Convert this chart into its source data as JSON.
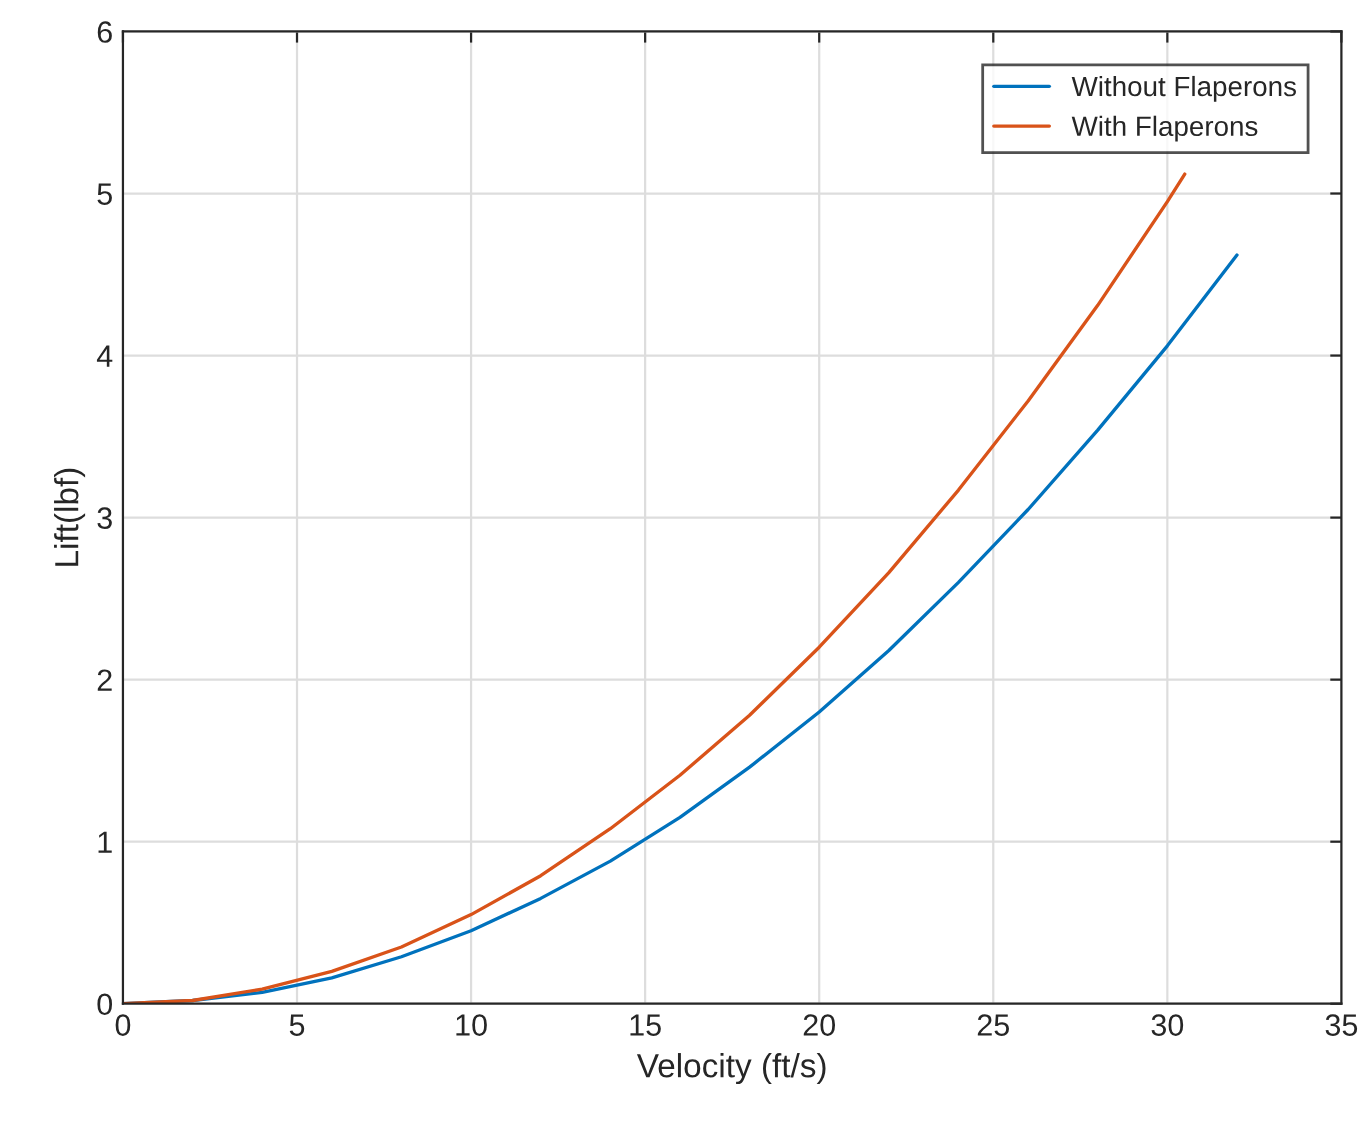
{
  "chart_data": {
    "type": "line",
    "xlabel": "Velocity (ft/s)",
    "ylabel": "Lift(lbf)",
    "xlim": [
      0,
      35
    ],
    "xticks": [
      0,
      5,
      10,
      15,
      20,
      25,
      30,
      35
    ],
    "ylim": [
      0,
      6
    ],
    "yticks": [
      0,
      1,
      2,
      3,
      4,
      5,
      6
    ],
    "grid": true,
    "legend": "top right",
    "line_style": "solid",
    "series": [
      {
        "name": "Without Flaperons",
        "color": "#0072bd",
        "x": [
          0,
          2,
          4,
          6,
          8,
          10,
          12,
          14,
          16,
          18,
          20,
          22,
          24,
          26,
          28,
          30,
          32
        ],
        "values": [
          0,
          0.02,
          0.07,
          0.16,
          0.29,
          0.45,
          0.65,
          0.88,
          1.15,
          1.46,
          1.8,
          2.18,
          2.6,
          3.05,
          3.54,
          4.06,
          4.62
        ]
      },
      {
        "name": "With Flaperons",
        "color": "#d95319",
        "x": [
          0,
          2,
          4,
          6,
          8,
          10,
          12,
          14,
          16,
          18,
          20,
          22,
          24,
          26,
          28,
          30,
          30.5
        ],
        "values": [
          0,
          0.02,
          0.09,
          0.2,
          0.35,
          0.55,
          0.79,
          1.08,
          1.41,
          1.78,
          2.2,
          2.66,
          3.17,
          3.72,
          4.31,
          4.95,
          5.12
        ]
      }
    ]
  }
}
